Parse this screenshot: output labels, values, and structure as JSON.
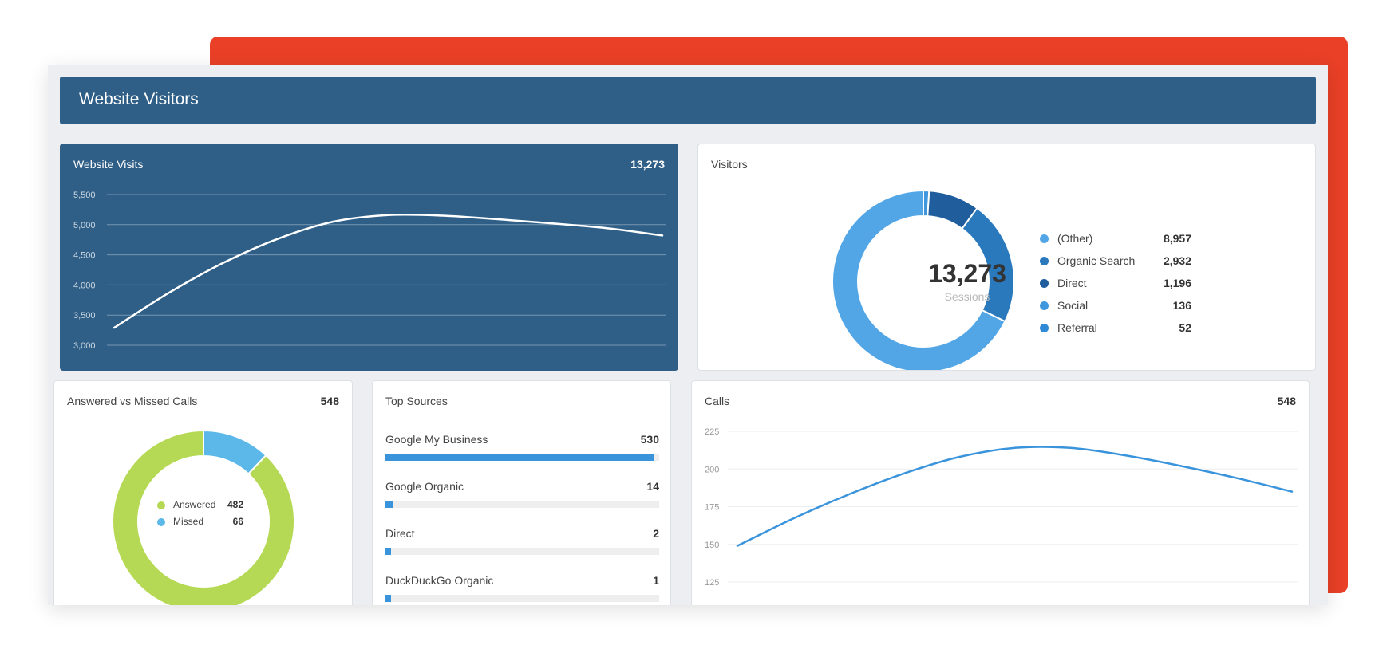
{
  "header": {
    "title": "Website Visitors"
  },
  "visits": {
    "title": "Website Visits",
    "total": "13,273",
    "colors": {
      "panel": "#2f5f87",
      "line": "#ffffff"
    },
    "chart_data": {
      "type": "line",
      "yticks": [
        "5,500",
        "5,000",
        "4,500",
        "4,000",
        "3,500",
        "3,000"
      ],
      "ylim": [
        3000,
        5500
      ],
      "x": [
        0,
        0.1,
        0.2,
        0.3,
        0.4,
        0.5,
        0.6,
        0.7,
        0.8,
        0.9,
        1.0
      ],
      "y": [
        3290,
        3870,
        4370,
        4770,
        5050,
        5160,
        5150,
        5090,
        5020,
        4940,
        4820
      ],
      "grid": true
    }
  },
  "visitors": {
    "title": "Visitors",
    "center_value": "13,273",
    "center_label": "Sessions",
    "chart_data": {
      "type": "pie",
      "slices": [
        {
          "label": "(Other)",
          "value": 8957,
          "display": "8,957",
          "color": "#52a6e6"
        },
        {
          "label": "Organic Search",
          "value": 2932,
          "display": "2,932",
          "color": "#2a79bd"
        },
        {
          "label": "Direct",
          "value": 1196,
          "display": "1,196",
          "color": "#1f5d9c"
        },
        {
          "label": "Social",
          "value": 136,
          "display": "136",
          "color": "#3f97dd"
        },
        {
          "label": "Referral",
          "value": 52,
          "display": "52",
          "color": "#2f8ad6"
        }
      ]
    }
  },
  "answered": {
    "title": "Answered vs Missed Calls",
    "total": "548",
    "chart_data": {
      "type": "pie",
      "slices": [
        {
          "label": "Answered",
          "value": 482,
          "display": "482",
          "color": "#b5d955"
        },
        {
          "label": "Missed",
          "value": 66,
          "display": "66",
          "color": "#5bb8e8"
        }
      ]
    }
  },
  "sources": {
    "title": "Top Sources",
    "items": [
      {
        "name": "Google My Business",
        "count": "530",
        "value": 530
      },
      {
        "name": "Google Organic",
        "count": "14",
        "value": 14
      },
      {
        "name": "Direct",
        "count": "2",
        "value": 2
      },
      {
        "name": "DuckDuckGo Organic",
        "count": "1",
        "value": 1
      }
    ],
    "bar_color": "#3a94dc"
  },
  "calls": {
    "title": "Calls",
    "total": "548",
    "colors": {
      "line": "#3a94dc"
    },
    "chart_data": {
      "type": "line",
      "yticks": [
        "225",
        "200",
        "175",
        "150",
        "125"
      ],
      "ylim": [
        125,
        225
      ],
      "x": [
        0,
        0.1,
        0.2,
        0.3,
        0.4,
        0.5,
        0.6,
        0.7,
        0.8,
        0.9,
        1.0
      ],
      "y": [
        149,
        167,
        183,
        197,
        208,
        214,
        214,
        209,
        202,
        194,
        185
      ],
      "grid": true
    }
  }
}
